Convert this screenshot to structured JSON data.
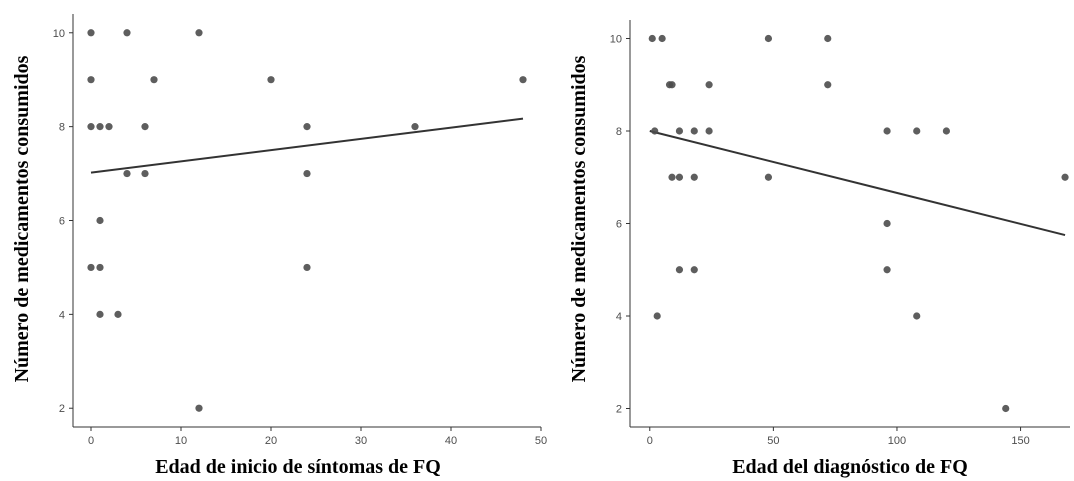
{
  "chart_data": [
    {
      "type": "scatter",
      "title": "",
      "xlabel": "Edad de inicio de síntomas de FQ",
      "ylabel": "Número de medicamentos consumidos",
      "xlim": [
        -2,
        50
      ],
      "ylim": [
        1.6,
        10.4
      ],
      "xticks": [
        0,
        10,
        20,
        30,
        40,
        50
      ],
      "yticks": [
        2,
        4,
        6,
        8,
        10
      ],
      "grid": false,
      "points": [
        {
          "x": 0,
          "y": 10
        },
        {
          "x": 0,
          "y": 9
        },
        {
          "x": 0,
          "y": 8
        },
        {
          "x": 0,
          "y": 5
        },
        {
          "x": 1,
          "y": 8
        },
        {
          "x": 1,
          "y": 6
        },
        {
          "x": 1,
          "y": 5
        },
        {
          "x": 1,
          "y": 4
        },
        {
          "x": 2,
          "y": 8
        },
        {
          "x": 3,
          "y": 4
        },
        {
          "x": 4,
          "y": 10
        },
        {
          "x": 4,
          "y": 7
        },
        {
          "x": 6,
          "y": 8
        },
        {
          "x": 6,
          "y": 7
        },
        {
          "x": 7,
          "y": 9
        },
        {
          "x": 12,
          "y": 10
        },
        {
          "x": 12,
          "y": 2
        },
        {
          "x": 20,
          "y": 9
        },
        {
          "x": 24,
          "y": 8
        },
        {
          "x": 24,
          "y": 7
        },
        {
          "x": 24,
          "y": 5
        },
        {
          "x": 36,
          "y": 8
        },
        {
          "x": 48,
          "y": 9
        }
      ],
      "trendline": {
        "x": [
          0,
          48
        ],
        "y": [
          7.02,
          8.17
        ]
      }
    },
    {
      "type": "scatter",
      "title": "",
      "xlabel": "Edad del diagnóstico de FQ",
      "ylabel": "Número de medicamentos consumidos",
      "xlim": [
        -8,
        170
      ],
      "ylim": [
        1.6,
        10.4
      ],
      "xticks": [
        0,
        50,
        100,
        150
      ],
      "yticks": [
        2,
        4,
        6,
        8,
        10
      ],
      "grid": false,
      "points": [
        {
          "x": 1,
          "y": 10
        },
        {
          "x": 5,
          "y": 10
        },
        {
          "x": 2,
          "y": 8
        },
        {
          "x": 3,
          "y": 4
        },
        {
          "x": 8,
          "y": 9
        },
        {
          "x": 9,
          "y": 9
        },
        {
          "x": 9,
          "y": 7
        },
        {
          "x": 12,
          "y": 8
        },
        {
          "x": 12,
          "y": 7
        },
        {
          "x": 12,
          "y": 5
        },
        {
          "x": 18,
          "y": 8
        },
        {
          "x": 18,
          "y": 7
        },
        {
          "x": 18,
          "y": 5
        },
        {
          "x": 24,
          "y": 9
        },
        {
          "x": 24,
          "y": 8
        },
        {
          "x": 48,
          "y": 10
        },
        {
          "x": 48,
          "y": 7
        },
        {
          "x": 72,
          "y": 10
        },
        {
          "x": 72,
          "y": 9
        },
        {
          "x": 96,
          "y": 8
        },
        {
          "x": 96,
          "y": 6
        },
        {
          "x": 96,
          "y": 5
        },
        {
          "x": 108,
          "y": 8
        },
        {
          "x": 108,
          "y": 4
        },
        {
          "x": 120,
          "y": 8
        },
        {
          "x": 144,
          "y": 2
        },
        {
          "x": 168,
          "y": 7
        }
      ],
      "trendline": {
        "x": [
          0,
          168
        ],
        "y": [
          8.0,
          5.75
        ]
      }
    }
  ]
}
